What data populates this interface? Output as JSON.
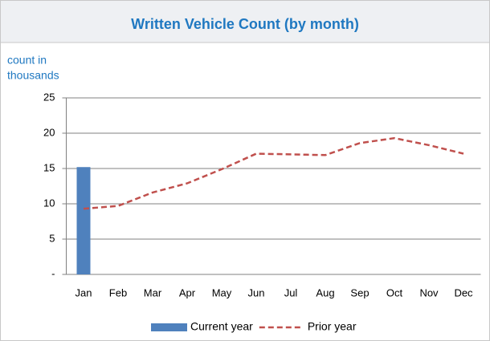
{
  "chart_data": {
    "type": "combo",
    "title": "Written Vehicle Count (by month)",
    "y_label": [
      "count in",
      "thousands"
    ],
    "categories": [
      "Jan",
      "Feb",
      "Mar",
      "Apr",
      "May",
      "Jun",
      "Jul",
      "Aug",
      "Sep",
      "Oct",
      "Nov",
      "Dec"
    ],
    "series": [
      {
        "name": "Current year",
        "type": "bar",
        "color": "#4f81bd",
        "values": [
          15.2,
          null,
          null,
          null,
          null,
          null,
          null,
          null,
          null,
          null,
          null,
          null
        ]
      },
      {
        "name": "Prior year",
        "type": "line",
        "color": "#c0504d",
        "dashed": true,
        "values": [
          9.3,
          9.7,
          11.6,
          12.9,
          14.9,
          17.1,
          17.0,
          16.9,
          18.6,
          19.3,
          18.3,
          17.1
        ]
      }
    ],
    "ylim": [
      0,
      25
    ],
    "yticks": [
      {
        "value": 0,
        "label": "-"
      },
      5,
      10,
      15,
      20,
      25
    ],
    "grid": true,
    "legend": "bottom"
  }
}
